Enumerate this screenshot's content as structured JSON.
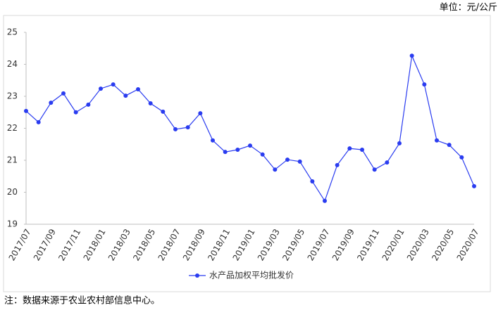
{
  "chart_data": {
    "type": "line",
    "unit": "单位：元/公斤",
    "note": "注：数据来源于农业农村部信息中心。",
    "categories": [
      "2017/07",
      null,
      "2017/09",
      null,
      "2017/11",
      null,
      "2018/01",
      null,
      "2018/03",
      null,
      "2018/05",
      null,
      "2018/07",
      null,
      "2018/09",
      null,
      "2018/11",
      null,
      "2019/01",
      null,
      "2019/03",
      null,
      "2019/05",
      null,
      "2019/07",
      null,
      "2019/09",
      null,
      "2019/11",
      null,
      "2020/01",
      null,
      "2020/03",
      null,
      "2020/05",
      null,
      "2020/07"
    ],
    "series": [
      {
        "name": "水产品加权平均批发价",
        "color": "#2a3cf0",
        "values": [
          22.54,
          22.19,
          22.8,
          23.09,
          22.5,
          22.74,
          23.24,
          23.37,
          23.02,
          23.22,
          22.78,
          22.52,
          21.97,
          22.03,
          22.47,
          21.62,
          21.26,
          21.33,
          21.46,
          21.18,
          20.71,
          21.02,
          20.96,
          20.34,
          19.73,
          20.85,
          21.37,
          21.33,
          20.71,
          20.93,
          21.53,
          24.27,
          23.37,
          21.62,
          21.48,
          21.09,
          20.19
        ]
      }
    ],
    "ylim": [
      19,
      25
    ],
    "yticks": [
      19,
      20,
      21,
      22,
      23,
      24,
      25
    ],
    "legend": "bottom"
  }
}
